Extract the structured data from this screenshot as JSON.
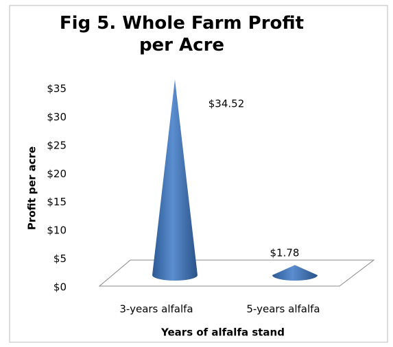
{
  "chart_data": {
    "type": "cone",
    "title": "Fig 5. Whole Farm Profit per Acre",
    "categories": [
      "3-years alfalfa",
      "5-years alfalfa"
    ],
    "values": [
      34.52,
      1.78
    ],
    "value_labels": [
      "$34.52",
      "$1.78"
    ],
    "color": "#4f81bd",
    "x_label": "Years of alfalfa stand",
    "y_label": "Profit per acre",
    "ylim": [
      0,
      35
    ],
    "yticks": [
      {
        "value": 0,
        "label": "$0"
      },
      {
        "value": 5,
        "label": "$5"
      },
      {
        "value": 10,
        "label": "$10"
      },
      {
        "value": 15,
        "label": "$15"
      },
      {
        "value": 20,
        "label": "$20"
      },
      {
        "value": 25,
        "label": "$25"
      },
      {
        "value": 30,
        "label": "$30"
      },
      {
        "value": 35,
        "label": "$35"
      }
    ]
  }
}
